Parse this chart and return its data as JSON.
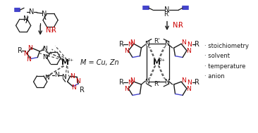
{
  "background_color": "#ffffff",
  "red": "#cc0000",
  "blue": "#4444cc",
  "black": "#1a1a1a",
  "gray": "#555555",
  "bullet_items": [
    "stoichiometry",
    "solvent",
    "temperature",
    "anion"
  ],
  "m_eq_text": "M = Cu, Zn",
  "figsize": [
    3.66,
    1.89
  ],
  "dpi": 100
}
